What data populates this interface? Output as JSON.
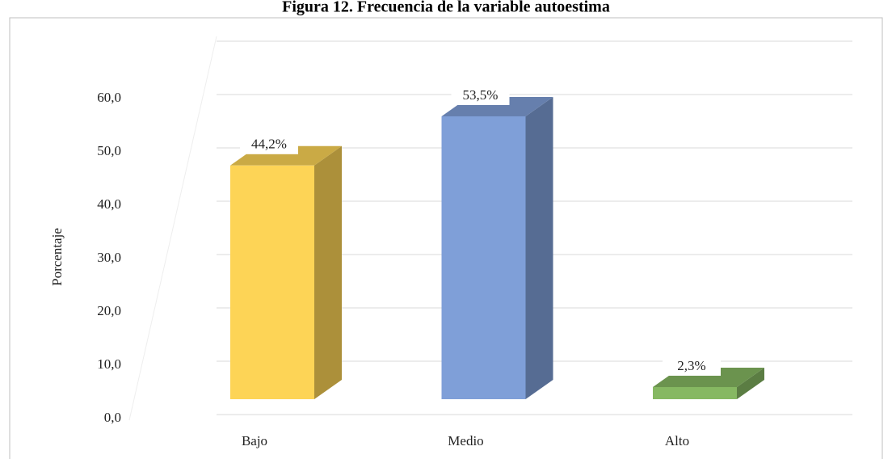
{
  "chart_data": {
    "type": "bar3d",
    "title": "Figura 12. Frecuencia de la variable autoestima",
    "y_label": "Porcentaje",
    "categories": [
      "Bajo",
      "Medio",
      "Alto"
    ],
    "values": [
      44.2,
      53.5,
      2.3
    ],
    "value_labels": [
      "44,2%",
      "53,5%",
      "2,3%"
    ],
    "colors": [
      "#fdd456",
      "#7f9fd8",
      "#86b862"
    ],
    "ylim": [
      0,
      70
    ],
    "yticks": [
      {
        "value": 0,
        "label": "0,0"
      },
      {
        "value": 10,
        "label": "10,0"
      },
      {
        "value": 20,
        "label": "20,0"
      },
      {
        "value": 30,
        "label": "30,0"
      },
      {
        "value": 40,
        "label": "40,0"
      },
      {
        "value": 50,
        "label": "50,0"
      },
      {
        "value": 60,
        "label": "60,0"
      }
    ],
    "grid": true
  }
}
